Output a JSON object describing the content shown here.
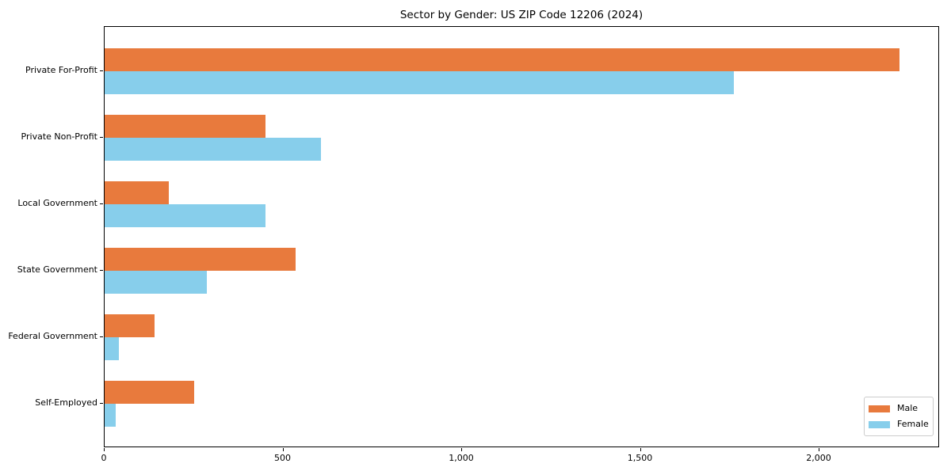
{
  "chart_data": {
    "type": "bar",
    "orientation": "horizontal",
    "title": "Sector by Gender: US ZIP Code 12206 (2024)",
    "xlabel": "",
    "ylabel": "",
    "grid": false,
    "legend_position": "lower right",
    "xlim": [
      0,
      2337
    ],
    "categories": [
      "Private For-Profit",
      "Private Non-Profit",
      "Local Government",
      "State Government",
      "Federal Government",
      "Self-Employed"
    ],
    "series": [
      {
        "name": "Male",
        "color": "#e87a3d",
        "values": [
          2225,
          450,
          180,
          535,
          140,
          250
        ]
      },
      {
        "name": "Female",
        "color": "#87ceeb",
        "values": [
          1760,
          605,
          450,
          285,
          40,
          30
        ]
      }
    ],
    "x_ticks": [
      {
        "value": 0,
        "label": "0"
      },
      {
        "value": 500,
        "label": "500"
      },
      {
        "value": 1000,
        "label": "1,000"
      },
      {
        "value": 1500,
        "label": "1,500"
      },
      {
        "value": 2000,
        "label": "2,000"
      }
    ]
  }
}
